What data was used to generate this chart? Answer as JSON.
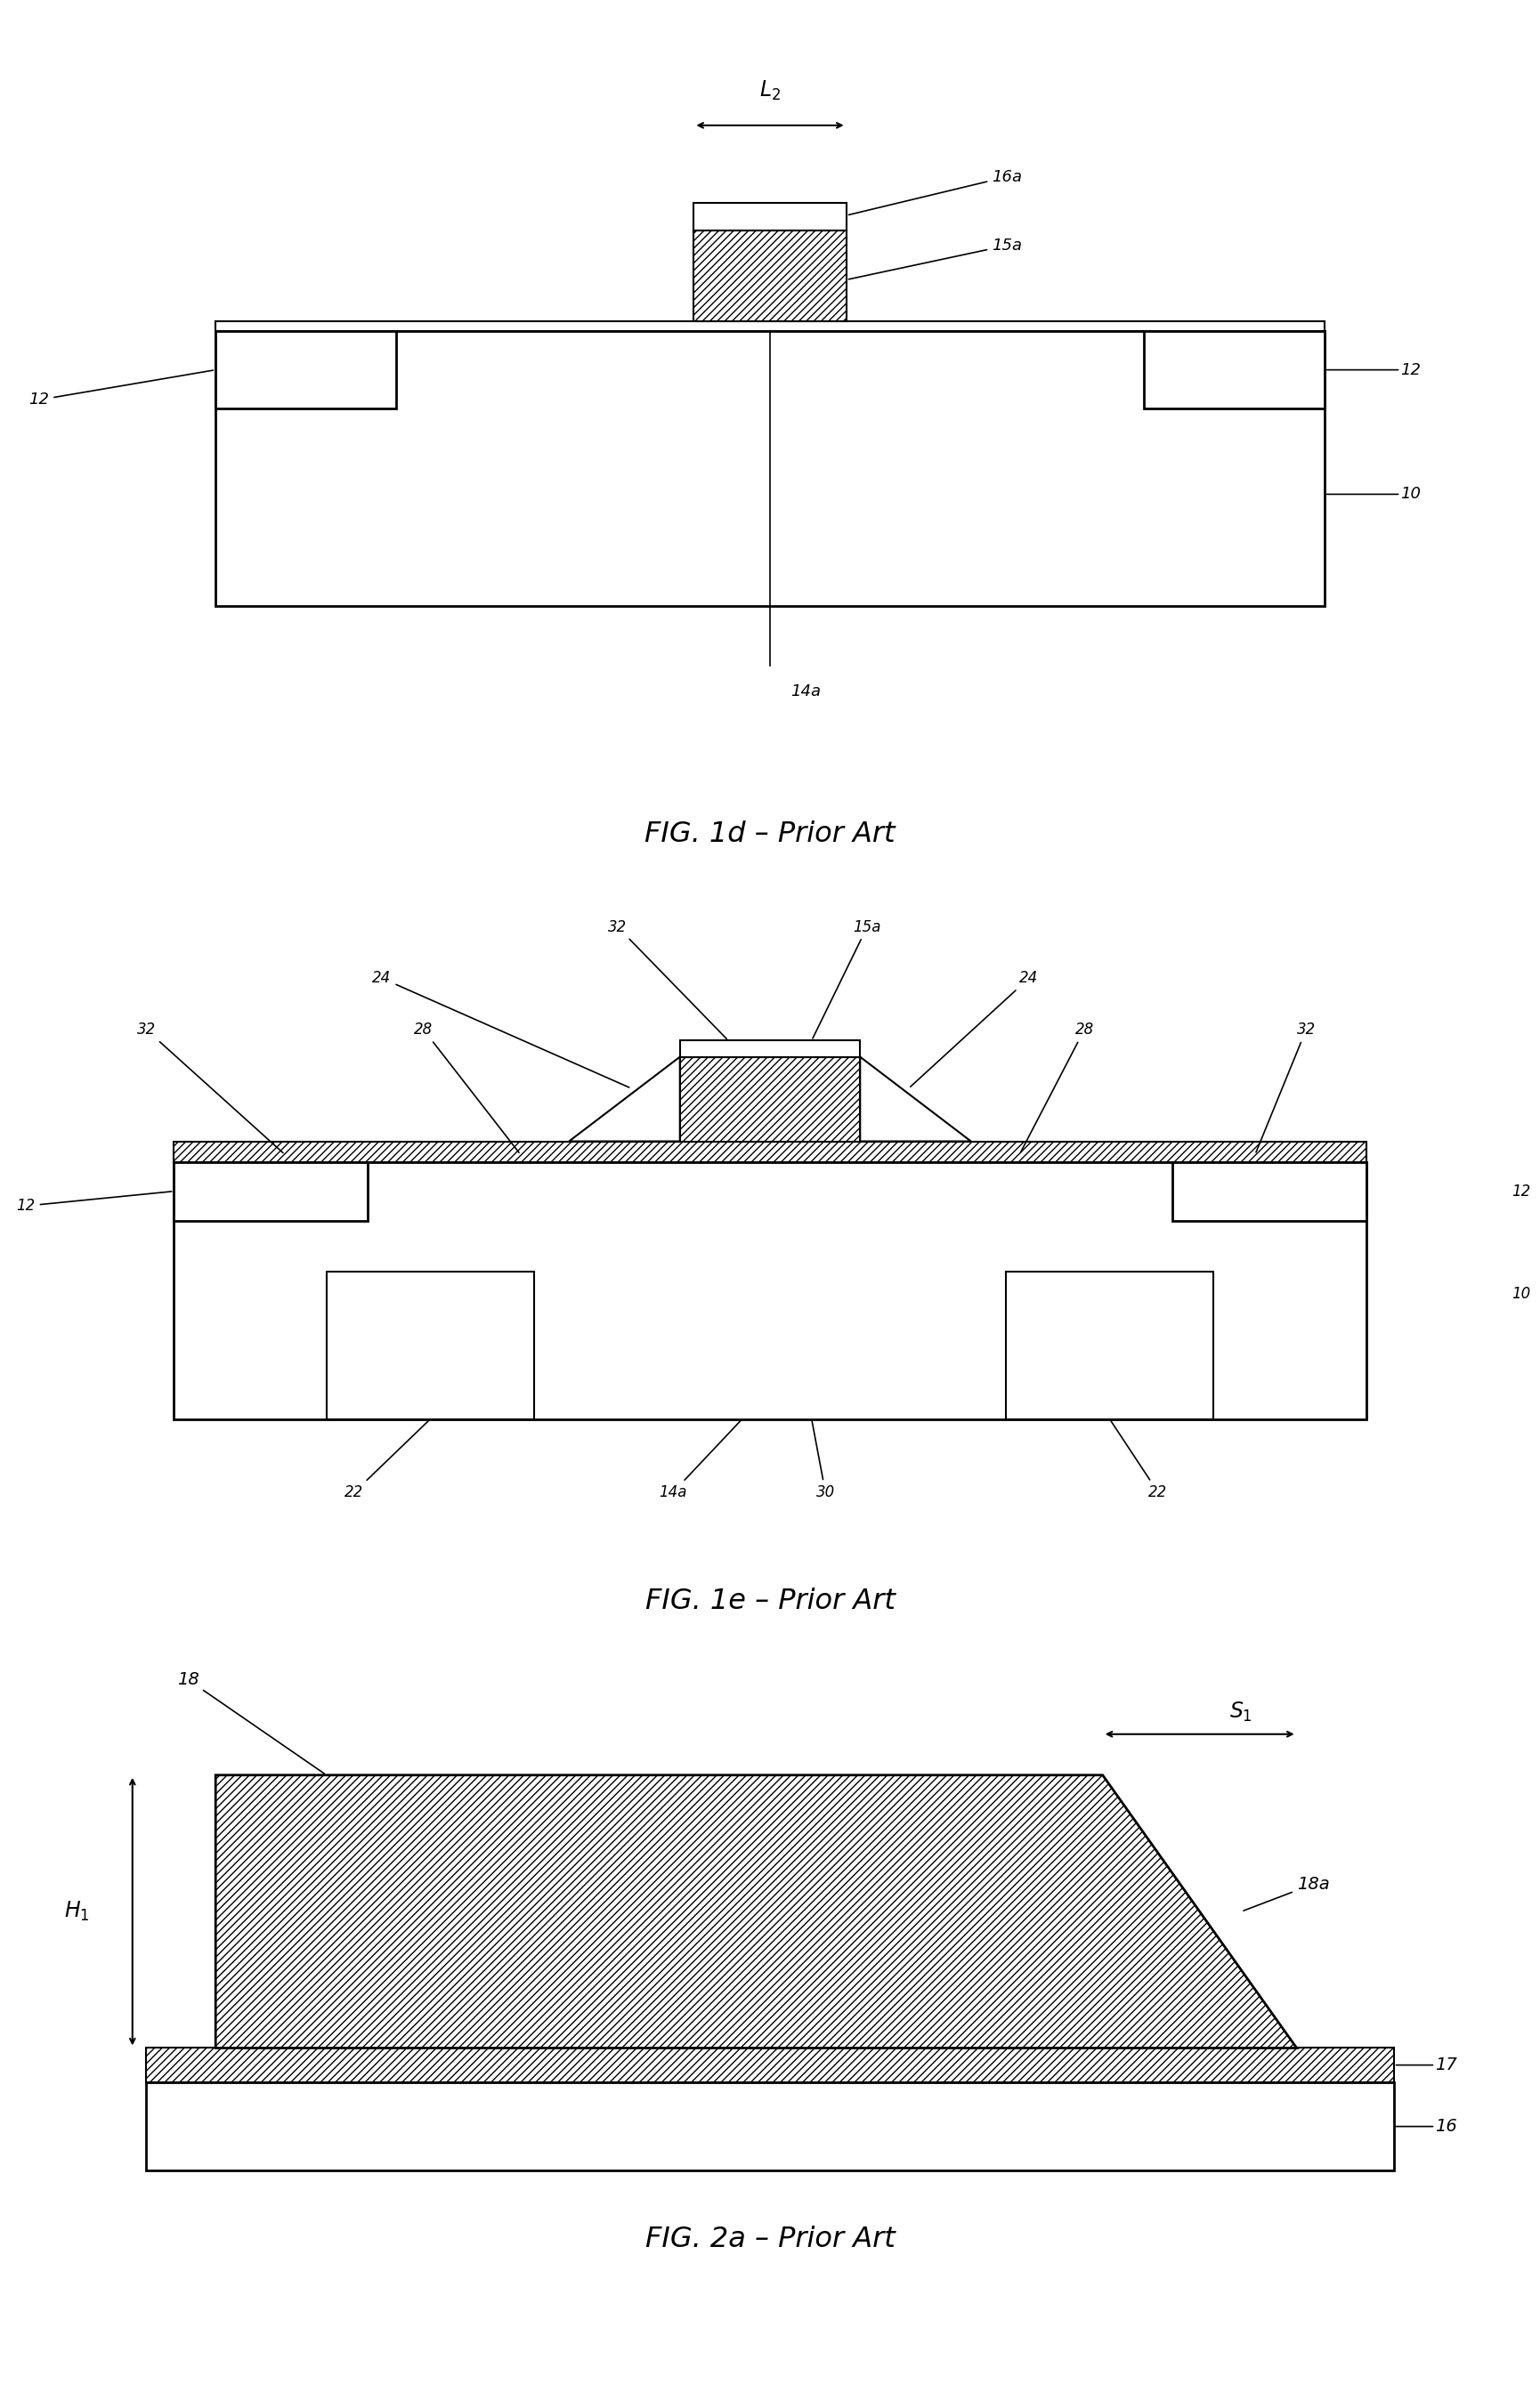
{
  "bg_color": "#ffffff",
  "line_color": "#000000",
  "fig_width": 17.3,
  "fig_height": 27.06,
  "label_1d": "FIG. 1d – Prior Art",
  "label_1e": "FIG. 1e – Prior Art",
  "label_2a": "FIG. 2a – Prior Art"
}
